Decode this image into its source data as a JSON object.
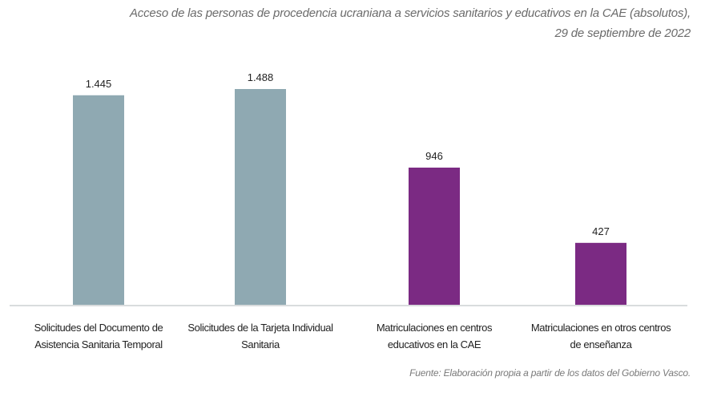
{
  "chart_data": {
    "type": "bar",
    "title": "Acceso de las personas de procedencia ucraniana a servicios sanitarios y educativos en la CAE (absolutos),",
    "subtitle": "29 de septiembre de 2022",
    "categories": [
      [
        "Solicitudes del Documento de",
        "Asistencia Sanitaria Temporal"
      ],
      [
        "Solicitudes de la Tarjeta Individual",
        "Sanitaria"
      ],
      [
        "Matriculaciones en centros",
        "educativos en la CAE"
      ],
      [
        "Matriculaciones en otros centros",
        "de enseñanza"
      ]
    ],
    "values": [
      1445,
      1488,
      946,
      427
    ],
    "data_labels": [
      "1.445",
      "1.488",
      "946",
      "427"
    ],
    "colors": [
      "#8fa9b2",
      "#8fa9b2",
      "#7b2a83",
      "#7b2a83"
    ],
    "xlabel": "",
    "ylabel": "",
    "ylim": [
      0,
      1488
    ],
    "grid": false,
    "source": "Fuente: Elaboración propia a partir de los datos del Gobierno Vasco."
  }
}
